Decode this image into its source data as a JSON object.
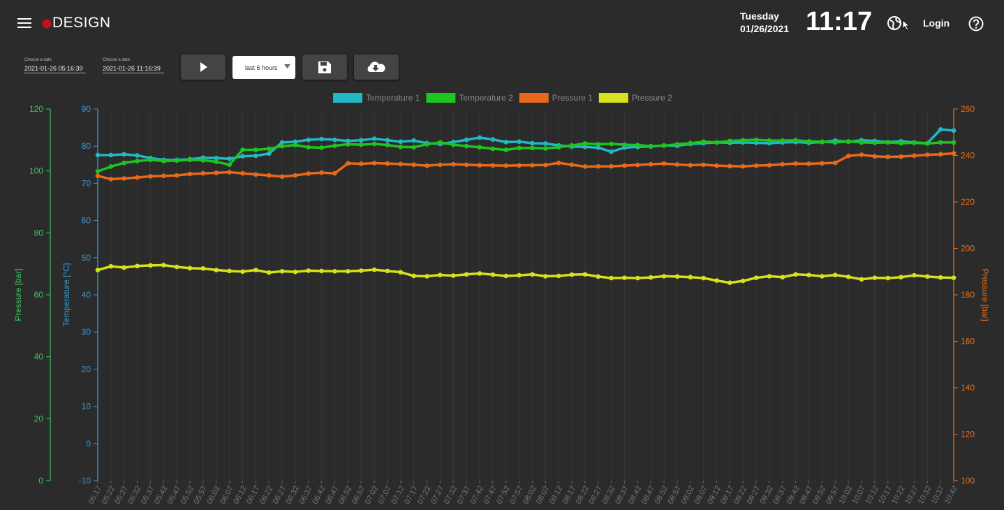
{
  "header": {
    "logo": "DESIGN",
    "day": "Tuesday",
    "date": "01/26/2021",
    "clock": "11:17",
    "login": "Login"
  },
  "controls": {
    "start_label": "Choose a date",
    "start": "2021-01-26 05:16:39",
    "end_label": "Choose a date",
    "end": "2021-01-26 11:16:39",
    "range": "last 6 hours"
  },
  "chart_data": {
    "type": "line",
    "categories": [
      "05:17",
      "05:22",
      "05:27",
      "05:32",
      "05:37",
      "05:42",
      "05:47",
      "05:52",
      "05:57",
      "06:02",
      "06:07",
      "06:12",
      "06:17",
      "06:22",
      "06:27",
      "06:32",
      "06:37",
      "06:42",
      "06:47",
      "06:52",
      "06:57",
      "07:02",
      "07:07",
      "07:12",
      "07:17",
      "07:22",
      "07:27",
      "07:32",
      "07:37",
      "07:42",
      "07:47",
      "07:52",
      "07:57",
      "08:02",
      "08:07",
      "08:12",
      "08:17",
      "08:22",
      "08:27",
      "08:32",
      "08:37",
      "08:42",
      "08:47",
      "08:52",
      "08:57",
      "09:02",
      "09:07",
      "09:12",
      "09:17",
      "09:22",
      "09:27",
      "09:32",
      "09:37",
      "09:42",
      "09:47",
      "09:52",
      "09:57",
      "10:02",
      "10:07",
      "10:12",
      "10:17",
      "10:22",
      "10:27",
      "10:32",
      "10:37",
      "10:42"
    ],
    "series": [
      {
        "name": "Temperature 1",
        "color": "#22b8c4",
        "axis": "y",
        "values": [
          77.6,
          77.6,
          77.8,
          77.5,
          76.8,
          76.3,
          76.3,
          76.5,
          76.9,
          76.8,
          76.6,
          77.3,
          77.4,
          78.0,
          81.0,
          81.2,
          81.7,
          81.9,
          81.7,
          81.4,
          81.6,
          82.0,
          81.6,
          81.2,
          81.5,
          80.8,
          80.6,
          81.1,
          81.7,
          82.3,
          81.8,
          81.1,
          81.2,
          80.8,
          80.7,
          80.2,
          79.9,
          79.8,
          79.6,
          78.5,
          79.6,
          79.8,
          79.9,
          80.2,
          80.1,
          80.6,
          80.8,
          81.0,
          80.9,
          81.0,
          80.9,
          80.8,
          81.0,
          81.1,
          80.9,
          81.1,
          81.5,
          81.2,
          81.6,
          81.4,
          81.1,
          81.3,
          81.0,
          80.8,
          84.5,
          84.2
        ]
      },
      {
        "name": "Temperature 2",
        "color": "#1ec51e",
        "axis": "y",
        "values": [
          73.2,
          74.5,
          75.5,
          76.0,
          76.3,
          76.0,
          76.1,
          76.3,
          76.2,
          75.8,
          75.0,
          79.0,
          79.0,
          79.3,
          80.0,
          80.3,
          79.7,
          79.6,
          80.1,
          80.5,
          80.4,
          80.6,
          80.3,
          79.8,
          79.7,
          80.5,
          81.0,
          80.4,
          80.0,
          79.7,
          79.3,
          79.0,
          79.5,
          79.5,
          79.4,
          79.7,
          80.2,
          80.7,
          80.5,
          80.6,
          80.4,
          80.3,
          80.0,
          80.1,
          80.5,
          80.8,
          81.2,
          81.0,
          81.4,
          81.6,
          81.7,
          81.5,
          81.5,
          81.6,
          81.3,
          81.2,
          81.0,
          81.3,
          81.0,
          80.9,
          81.0,
          80.8,
          80.9,
          80.7,
          81.0,
          81.0
        ]
      },
      {
        "name": "Pressure 1",
        "color": "#e8691a",
        "axis": "y2",
        "values": [
          231.2,
          229.8,
          230.1,
          230.5,
          231.0,
          231.2,
          231.4,
          232.0,
          232.3,
          232.5,
          232.8,
          232.3,
          231.8,
          231.4,
          230.9,
          231.4,
          232.2,
          232.6,
          232.3,
          236.6,
          236.4,
          236.7,
          236.5,
          236.3,
          236.0,
          235.6,
          236.0,
          236.2,
          236.0,
          235.8,
          235.7,
          235.6,
          235.7,
          235.8,
          235.9,
          236.8,
          236.0,
          235.2,
          235.3,
          235.3,
          235.6,
          235.9,
          236.2,
          236.5,
          236.1,
          235.8,
          236.0,
          235.6,
          235.4,
          235.3,
          235.6,
          235.8,
          236.2,
          236.5,
          236.4,
          236.6,
          236.8,
          239.8,
          240.3,
          239.6,
          239.4,
          239.5,
          239.9,
          240.3,
          240.5,
          240.9
        ]
      },
      {
        "name": "Pressure 2",
        "color": "#d6e21c",
        "axis": "y3",
        "values": [
          68.0,
          69.2,
          68.8,
          69.3,
          69.5,
          69.6,
          69.0,
          68.6,
          68.5,
          68.0,
          67.7,
          67.5,
          68.0,
          67.2,
          67.6,
          67.4,
          67.8,
          67.7,
          67.6,
          67.6,
          67.8,
          68.1,
          67.7,
          67.3,
          66.1,
          66.0,
          66.4,
          66.2,
          66.6,
          66.9,
          66.5,
          66.1,
          66.3,
          66.6,
          66.0,
          66.1,
          66.5,
          66.6,
          65.9,
          65.4,
          65.5,
          65.4,
          65.6,
          66.0,
          65.9,
          65.7,
          65.4,
          64.6,
          63.9,
          64.5,
          65.5,
          66.0,
          65.7,
          66.6,
          66.4,
          66.0,
          66.4,
          65.8,
          65.0,
          65.5,
          65.4,
          65.7,
          66.3,
          65.9,
          65.6,
          65.5
        ]
      }
    ],
    "ylabel": "Temperature [°C]",
    "ylim": [
      -10,
      90
    ],
    "yticks": [
      -10,
      0,
      10,
      20,
      30,
      40,
      50,
      60,
      70,
      80,
      90
    ],
    "ycolor": "#3a9ad9",
    "y2label": "Pressure [bar]",
    "y2lim": [
      100,
      260
    ],
    "y2ticks": [
      100,
      120,
      140,
      160,
      180,
      200,
      220,
      240,
      260
    ],
    "y2color": "#e8711c",
    "y3label": "Pressure [bar]",
    "y3lim": [
      0,
      120
    ],
    "y3ticks": [
      0,
      20,
      40,
      60,
      80,
      100,
      120
    ],
    "y3color": "#3cc85a",
    "grid": true
  }
}
